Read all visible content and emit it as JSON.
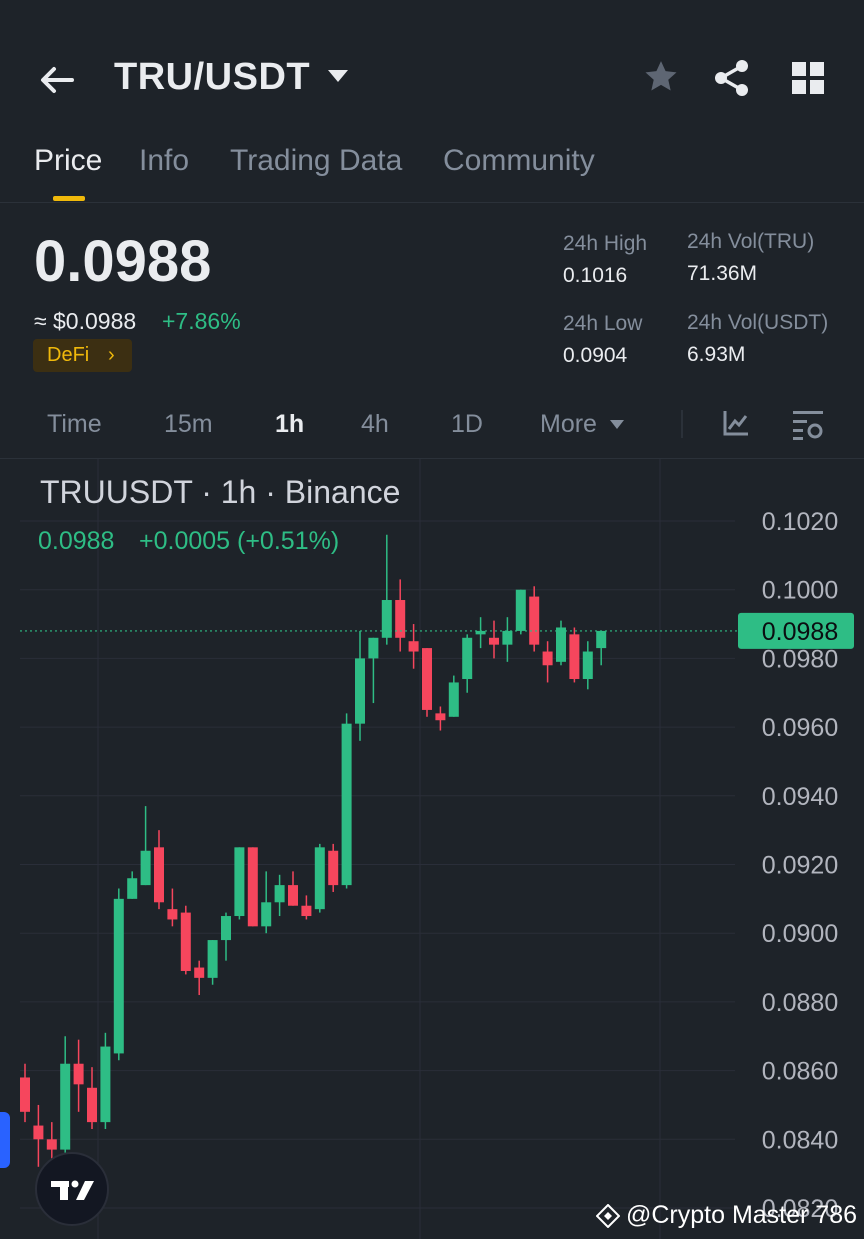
{
  "header": {
    "pair": "TRU/USDT",
    "icons": {
      "back": "back-arrow-icon",
      "dropdown": "caret-down-icon",
      "favorite": "star-icon",
      "share": "share-icon",
      "apps": "grid-icon"
    }
  },
  "tabs": [
    {
      "label": "Price",
      "active": true
    },
    {
      "label": "Info",
      "active": false
    },
    {
      "label": "Trading Data",
      "active": false
    },
    {
      "label": "Community",
      "active": false
    }
  ],
  "price": {
    "last": "0.0988",
    "usd": "≈ $0.0988",
    "change_pct": "+7.86%",
    "tag": "DeFi",
    "tag_chevron": "›"
  },
  "stats": {
    "high_label": "24h High",
    "high_value": "0.1016",
    "low_label": "24h Low",
    "low_value": "0.0904",
    "vol_tru_label": "24h Vol(TRU)",
    "vol_tru_value": "71.36M",
    "vol_usdt_label": "24h Vol(USDT)",
    "vol_usdt_value": "6.93M"
  },
  "intervals": {
    "items": [
      {
        "label": "Time",
        "active": false
      },
      {
        "label": "15m",
        "active": false
      },
      {
        "label": "1h",
        "active": true
      },
      {
        "label": "4h",
        "active": false
      },
      {
        "label": "1D",
        "active": false
      },
      {
        "label": "More",
        "active": false
      }
    ],
    "icons": {
      "indicators": "indicator-chart-icon",
      "settings": "chart-settings-icon"
    }
  },
  "chart_header": {
    "title": "TRUUSDT · 1h · Binance",
    "last": "0.0988",
    "change": "+0.0005 (+0.51%)"
  },
  "watermark": "@Crypto Master 786",
  "colors": {
    "up": "#2ebd85",
    "down": "#f6465d",
    "accent": "#f0b90b",
    "bg": "#1e2329"
  },
  "chart_data": {
    "type": "candlestick",
    "title": "TRUUSDT · 1h · Binance",
    "ylim": [
      0.082,
      0.102
    ],
    "y_ticks": [
      "0.1020",
      "0.1000",
      "0.0980",
      "0.0960",
      "0.0940",
      "0.0920",
      "0.0900",
      "0.0880",
      "0.0860",
      "0.0840",
      "0.0820"
    ],
    "last_price": "0.0988",
    "candles": [
      {
        "o": 0.0858,
        "h": 0.0862,
        "l": 0.0845,
        "c": 0.0848
      },
      {
        "o": 0.0844,
        "h": 0.085,
        "l": 0.0832,
        "c": 0.084
      },
      {
        "o": 0.084,
        "h": 0.0845,
        "l": 0.0834,
        "c": 0.0837
      },
      {
        "o": 0.0837,
        "h": 0.087,
        "l": 0.0834,
        "c": 0.0862
      },
      {
        "o": 0.0862,
        "h": 0.0869,
        "l": 0.0848,
        "c": 0.0856
      },
      {
        "o": 0.0855,
        "h": 0.0861,
        "l": 0.0843,
        "c": 0.0845
      },
      {
        "o": 0.0845,
        "h": 0.0871,
        "l": 0.0843,
        "c": 0.0867
      },
      {
        "o": 0.0865,
        "h": 0.0913,
        "l": 0.0863,
        "c": 0.091
      },
      {
        "o": 0.091,
        "h": 0.0918,
        "l": 0.091,
        "c": 0.0916
      },
      {
        "o": 0.0914,
        "h": 0.0937,
        "l": 0.0914,
        "c": 0.0924
      },
      {
        "o": 0.0925,
        "h": 0.093,
        "l": 0.0907,
        "c": 0.0909
      },
      {
        "o": 0.0907,
        "h": 0.0913,
        "l": 0.0902,
        "c": 0.0904
      },
      {
        "o": 0.0906,
        "h": 0.0908,
        "l": 0.0888,
        "c": 0.0889
      },
      {
        "o": 0.089,
        "h": 0.0892,
        "l": 0.0882,
        "c": 0.0887
      },
      {
        "o": 0.0887,
        "h": 0.0898,
        "l": 0.0885,
        "c": 0.0898
      },
      {
        "o": 0.0898,
        "h": 0.0906,
        "l": 0.0892,
        "c": 0.0905
      },
      {
        "o": 0.0905,
        "h": 0.0925,
        "l": 0.0904,
        "c": 0.0925
      },
      {
        "o": 0.0925,
        "h": 0.0925,
        "l": 0.0902,
        "c": 0.0902
      },
      {
        "o": 0.0902,
        "h": 0.0918,
        "l": 0.09,
        "c": 0.0909
      },
      {
        "o": 0.0909,
        "h": 0.0917,
        "l": 0.0905,
        "c": 0.0914
      },
      {
        "o": 0.0914,
        "h": 0.0918,
        "l": 0.0908,
        "c": 0.0908
      },
      {
        "o": 0.0908,
        "h": 0.0911,
        "l": 0.0904,
        "c": 0.0905
      },
      {
        "o": 0.0907,
        "h": 0.0926,
        "l": 0.0906,
        "c": 0.0925
      },
      {
        "o": 0.0924,
        "h": 0.0926,
        "l": 0.0912,
        "c": 0.0914
      },
      {
        "o": 0.0914,
        "h": 0.0964,
        "l": 0.0913,
        "c": 0.0961
      },
      {
        "o": 0.0961,
        "h": 0.0988,
        "l": 0.0956,
        "c": 0.098
      },
      {
        "o": 0.098,
        "h": 0.0986,
        "l": 0.0967,
        "c": 0.0986
      },
      {
        "o": 0.0986,
        "h": 0.1016,
        "l": 0.0984,
        "c": 0.0997
      },
      {
        "o": 0.0997,
        "h": 0.1003,
        "l": 0.0982,
        "c": 0.0986
      },
      {
        "o": 0.0985,
        "h": 0.099,
        "l": 0.0977,
        "c": 0.0982
      },
      {
        "o": 0.0983,
        "h": 0.0983,
        "l": 0.0963,
        "c": 0.0965
      },
      {
        "o": 0.0964,
        "h": 0.0966,
        "l": 0.0959,
        "c": 0.0962
      },
      {
        "o": 0.0963,
        "h": 0.0975,
        "l": 0.0963,
        "c": 0.0973
      },
      {
        "o": 0.0974,
        "h": 0.0987,
        "l": 0.097,
        "c": 0.0986
      },
      {
        "o": 0.0987,
        "h": 0.0992,
        "l": 0.0983,
        "c": 0.0988
      },
      {
        "o": 0.0986,
        "h": 0.0991,
        "l": 0.098,
        "c": 0.0984
      },
      {
        "o": 0.0984,
        "h": 0.0992,
        "l": 0.0979,
        "c": 0.0988
      },
      {
        "o": 0.0988,
        "h": 0.1,
        "l": 0.0987,
        "c": 0.1
      },
      {
        "o": 0.0998,
        "h": 0.1001,
        "l": 0.0982,
        "c": 0.0984
      },
      {
        "o": 0.0982,
        "h": 0.0985,
        "l": 0.0973,
        "c": 0.0978
      },
      {
        "o": 0.0979,
        "h": 0.0991,
        "l": 0.0978,
        "c": 0.0989
      },
      {
        "o": 0.0987,
        "h": 0.0989,
        "l": 0.0973,
        "c": 0.0974
      },
      {
        "o": 0.0974,
        "h": 0.0985,
        "l": 0.0971,
        "c": 0.0982
      },
      {
        "o": 0.0983,
        "h": 0.0988,
        "l": 0.0978,
        "c": 0.0988
      }
    ]
  }
}
